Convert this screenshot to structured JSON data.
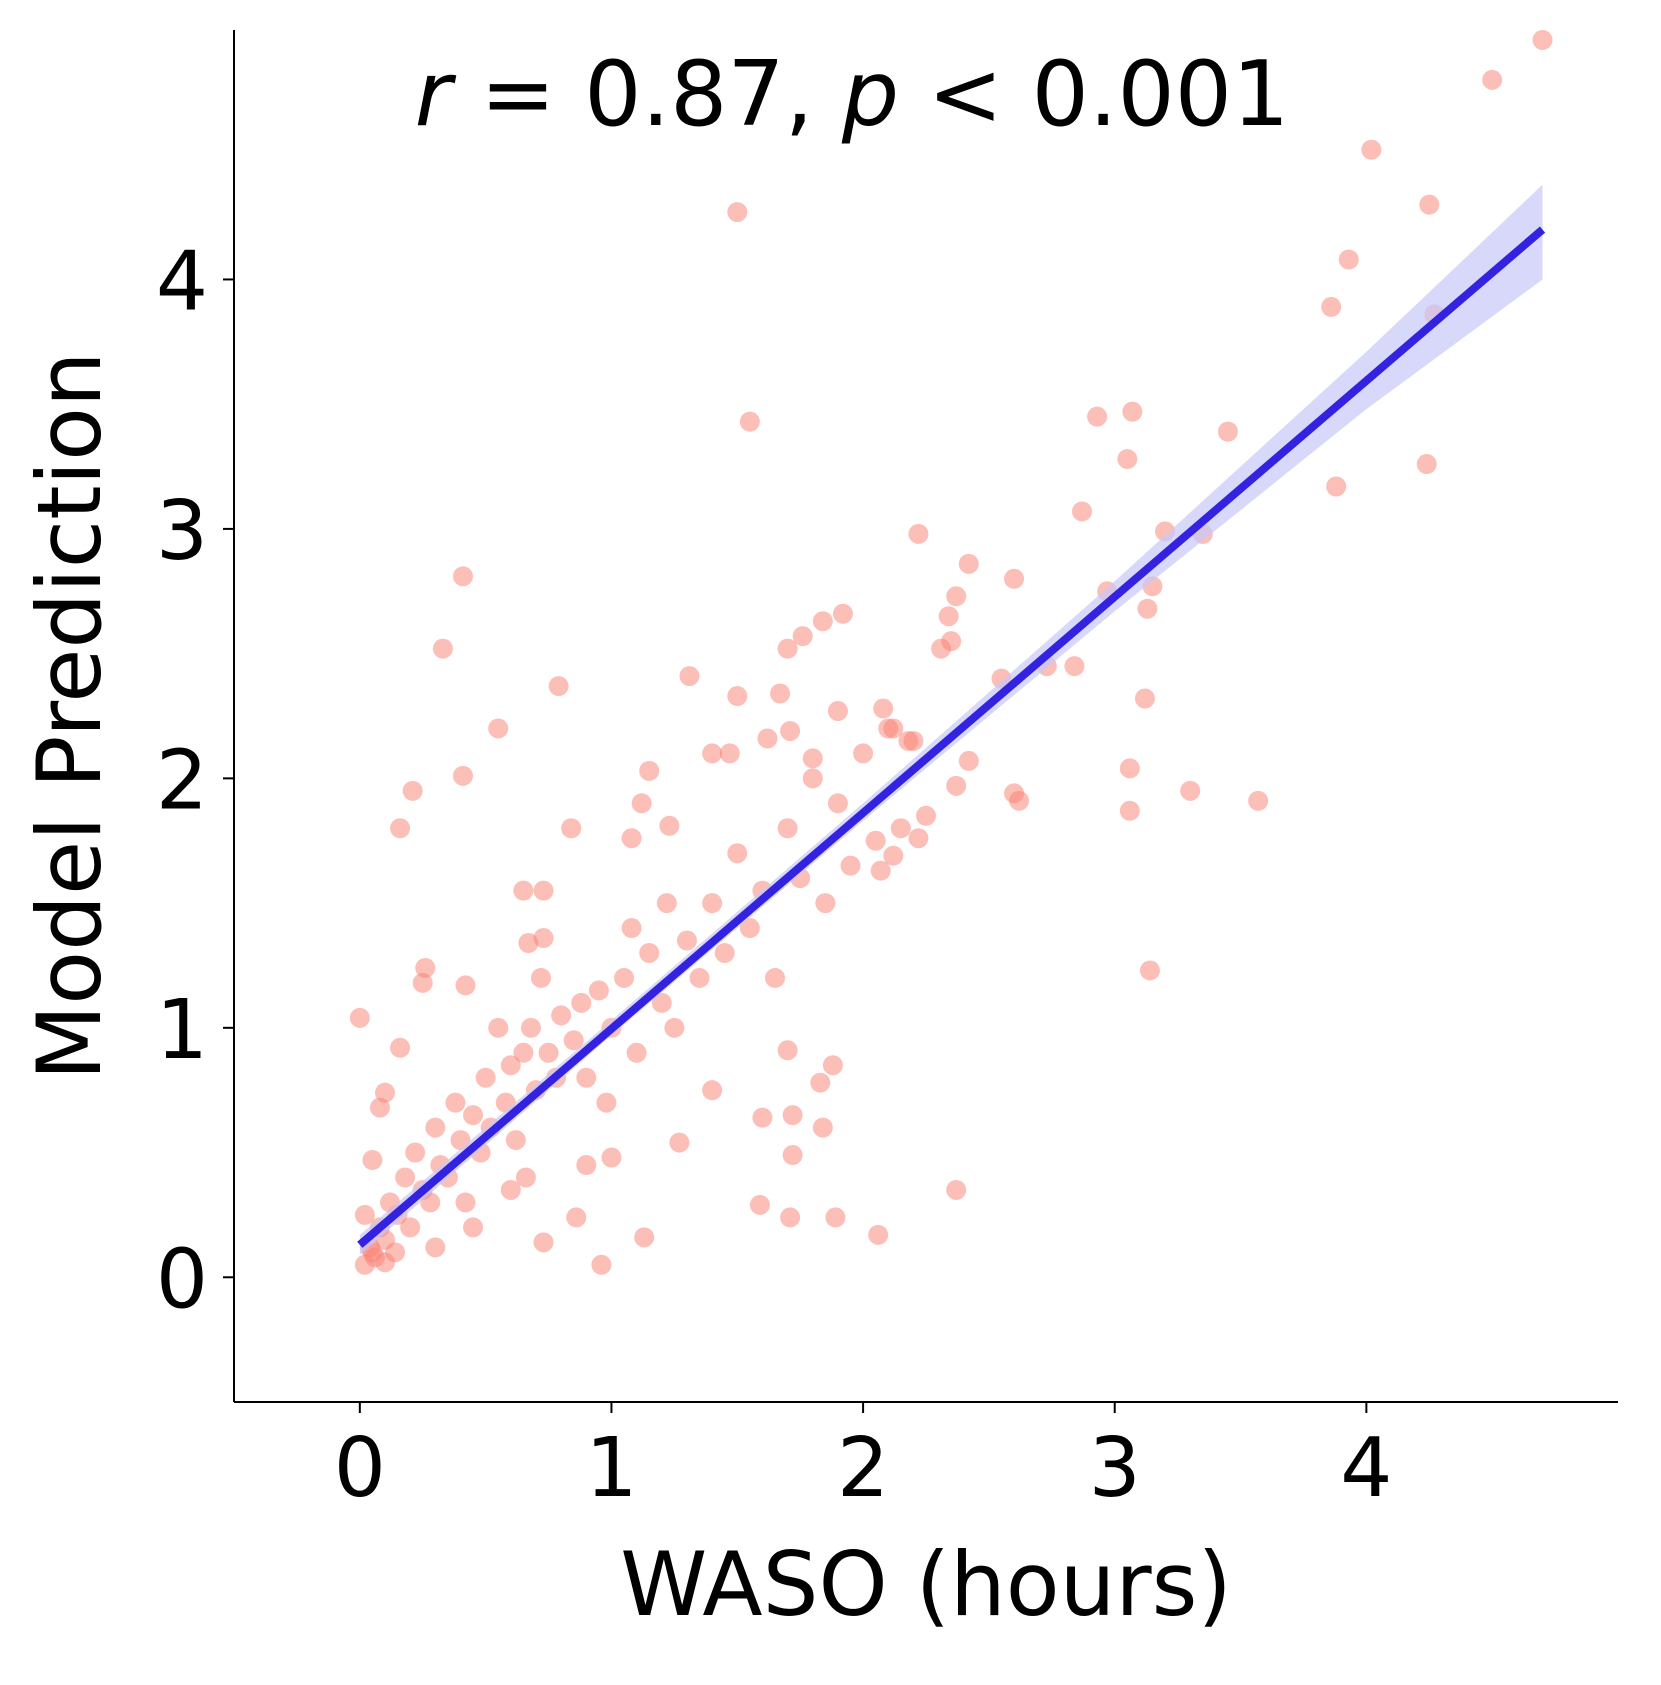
{
  "chart_data": {
    "type": "scatter",
    "annotation_parts": [
      "r",
      " = 0.87, ",
      "p",
      " < 0.001"
    ],
    "xlabel": "WASO (hours)",
    "ylabel": "Model Prediction",
    "color": "#fa8072",
    "x": [
      4.7,
      4.5,
      4.02,
      4.25,
      1.5,
      3.93,
      3.86,
      4.27,
      1.55,
      3.07,
      2.93,
      3.45,
      3.05,
      4.24,
      3.88,
      2.22,
      3.2,
      3.35,
      2.87,
      2.42,
      2.6,
      2.37,
      2.34,
      1.92,
      2.35,
      2.31,
      1.84,
      1.76,
      1.7,
      2.97,
      3.15,
      3.13,
      0.41,
      0.33,
      0.79,
      1.31,
      1.5,
      1.67,
      2.55,
      2.73,
      2.84,
      3.12,
      0.55,
      0.41,
      0.21,
      0.16,
      0.84,
      2.42,
      2.37,
      2.6,
      2.62,
      3.06,
      3.06,
      3.3,
      3.57,
      3.14,
      2.37,
      2.06,
      1.89,
      1.71,
      1.59,
      1.13,
      0.96,
      0.73,
      0,
      0.16,
      0.26,
      0.25,
      1.72,
      1.6,
      1.72,
      1.84,
      1.88,
      1.83,
      1.7,
      0.86,
      1.4,
      1.27,
      0.05,
      0.08,
      0.1,
      0.12,
      0.15,
      0.18,
      0.2,
      0.22,
      0.25,
      0.28,
      0.3,
      0.32,
      0.35,
      0.38,
      0.4,
      0.42,
      0.45,
      0.48,
      0.5,
      0.52,
      0.55,
      0.58,
      0.6,
      0.62,
      0.65,
      0.68,
      0.7,
      0.72,
      0.75,
      0.78,
      0.8,
      0.85,
      0.88,
      0.9,
      0.95,
      0.98,
      1.0,
      1.05,
      1.08,
      1.1,
      1.15,
      1.2,
      1.22,
      1.25,
      1.3,
      1.35,
      1.4,
      1.45,
      1.5,
      1.55,
      1.6,
      1.65,
      1.7,
      1.75,
      1.8,
      1.85,
      1.9,
      1.95,
      2.0,
      2.05,
      2.1,
      2.15,
      2.2,
      2.25,
      0.02,
      0.04,
      0.06,
      0.1,
      0.14,
      0.3,
      0.45,
      0.6,
      0.66,
      0.02,
      0.05,
      0.08,
      0.1,
      0.9,
      1.0,
      0.65,
      0.73,
      0.67,
      0.73,
      0.42,
      1.08,
      1.12,
      1.15,
      1.23,
      1.4,
      1.47,
      1.62,
      1.71,
      1.8,
      1.9,
      2.08,
      2.12,
      2.18,
      2.07,
      2.12,
      2.22
    ],
    "values": [
      4.96,
      4.8,
      4.52,
      4.3,
      4.27,
      4.08,
      3.89,
      3.86,
      3.43,
      3.47,
      3.45,
      3.39,
      3.28,
      3.26,
      3.17,
      2.98,
      2.99,
      2.98,
      3.07,
      2.86,
      2.8,
      2.73,
      2.65,
      2.66,
      2.55,
      2.52,
      2.63,
      2.57,
      2.52,
      2.75,
      2.77,
      2.68,
      2.81,
      2.52,
      2.37,
      2.41,
      2.33,
      2.34,
      2.4,
      2.45,
      2.45,
      2.32,
      2.2,
      2.01,
      1.95,
      1.8,
      1.8,
      2.07,
      1.97,
      1.94,
      1.91,
      2.04,
      1.87,
      1.95,
      1.91,
      1.23,
      0.35,
      0.17,
      0.24,
      0.24,
      0.29,
      0.16,
      0.05,
      0.14,
      1.04,
      0.92,
      1.24,
      1.18,
      0.65,
      0.64,
      0.49,
      0.6,
      0.85,
      0.78,
      0.91,
      0.24,
      0.75,
      0.54,
      0.1,
      0.2,
      0.15,
      0.3,
      0.25,
      0.4,
      0.2,
      0.5,
      0.35,
      0.3,
      0.6,
      0.45,
      0.4,
      0.7,
      0.55,
      0.3,
      0.65,
      0.5,
      0.8,
      0.6,
      1.0,
      0.7,
      0.85,
      0.55,
      0.9,
      1.0,
      0.75,
      1.2,
      0.9,
      0.8,
      1.05,
      0.95,
      1.1,
      0.8,
      1.15,
      0.7,
      1.0,
      1.2,
      1.4,
      0.9,
      1.3,
      1.1,
      1.5,
      1.0,
      1.35,
      1.2,
      1.5,
      1.3,
      1.7,
      1.4,
      1.55,
      1.2,
      1.8,
      1.6,
      2.0,
      1.5,
      1.9,
      1.65,
      2.1,
      1.75,
      2.2,
      1.8,
      2.15,
      1.85,
      0.05,
      0.12,
      0.08,
      0.06,
      0.1,
      0.12,
      0.2,
      0.35,
      0.4,
      0.25,
      0.47,
      0.68,
      0.74,
      0.45,
      0.48,
      1.55,
      1.55,
      1.34,
      1.36,
      1.17,
      1.76,
      1.9,
      2.03,
      1.81,
      2.1,
      2.1,
      2.16,
      2.19,
      2.08,
      2.27,
      2.28,
      2.2,
      2.15,
      1.63,
      1.69,
      1.76
    ],
    "fit_line": {
      "color": "#3322e0",
      "x": [
        0,
        4.7
      ],
      "y": [
        0.13,
        4.2
      ]
    },
    "ci_band": {
      "color": "#c8c8fa",
      "x": [
        0,
        1,
        2,
        3,
        4,
        4.7
      ],
      "lower": [
        0.09,
        0.97,
        1.83,
        2.67,
        3.48,
        4.0
      ],
      "upper": [
        0.17,
        1.03,
        1.9,
        2.79,
        3.71,
        4.38
      ]
    },
    "xlim": [
      -0.5,
      5
    ],
    "ylim": [
      -0.5,
      5
    ],
    "xticks": [
      0,
      1,
      2,
      3,
      4
    ],
    "yticks": [
      0,
      1,
      2,
      3,
      4
    ]
  }
}
